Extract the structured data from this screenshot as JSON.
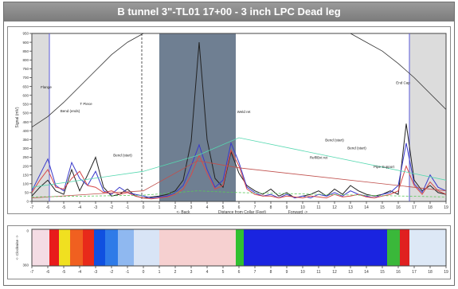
{
  "page": {
    "title": "B tunnel 3\"-TL01 17+00 - 3 inch LPC Dead leg"
  },
  "chart_data": [
    {
      "type": "line",
      "ylabel": "Signal (mV)",
      "xlabel_left": "<- Back",
      "xlabel": "Distance from Collar (Feet)",
      "xlabel_right": "Forward ->",
      "xlim": [
        -7,
        19
      ],
      "ylim": [
        0,
        950
      ],
      "x_ticks": [
        -7,
        -6,
        -5,
        -4,
        -3,
        -2,
        -1,
        0,
        1,
        2,
        3,
        4,
        5,
        6,
        7,
        8,
        9,
        10,
        11,
        12,
        13,
        14,
        15,
        16,
        17,
        18,
        19
      ],
      "y_ticks": [
        0,
        50,
        100,
        150,
        200,
        250,
        300,
        350,
        400,
        450,
        500,
        550,
        600,
        650,
        700,
        750,
        800,
        850,
        900,
        950
      ],
      "shaded_regions": [
        {
          "x0": -7,
          "x1": -5.9,
          "color": "#dcdcdc"
        },
        {
          "x0": 1,
          "x1": 5.8,
          "color": "#6f7f92"
        },
        {
          "x0": 16.7,
          "x1": 19,
          "color": "#dcdcdc"
        }
      ],
      "vlines": [
        {
          "x": -5.9,
          "color": "#5a5ad8",
          "style": "solid"
        },
        {
          "x": -0.1,
          "color": "#555555",
          "style": "dashed"
        },
        {
          "x": 16.7,
          "color": "#5a5ad8",
          "style": "solid"
        }
      ],
      "annotations": [
        {
          "text": "Flange",
          "x": -6.1,
          "y": 640
        },
        {
          "text": "Bend (ends)",
          "x": -4.6,
          "y": 505
        },
        {
          "text": "T Piece",
          "x": -3.6,
          "y": 545
        },
        {
          "text": "Bend (start)",
          "x": -1.3,
          "y": 255
        },
        {
          "text": "Weld ret",
          "x": 6.3,
          "y": 500
        },
        {
          "text": "Bend (start)",
          "x": 12.0,
          "y": 340
        },
        {
          "text": "Bend (start)",
          "x": 13.4,
          "y": 295
        },
        {
          "text": "Refl/Bxt ret",
          "x": 11.0,
          "y": 240
        },
        {
          "text": "Pipe Support",
          "x": 15.1,
          "y": 190
        },
        {
          "text": "End Cap",
          "x": 16.3,
          "y": 665
        }
      ],
      "series": [
        {
          "color": "#222222",
          "x": [
            -7,
            -6.5,
            -6,
            -5.5,
            -5,
            -4.5,
            -4,
            -3.5,
            -3,
            -2.5,
            -2,
            -1.5,
            -1,
            -0.5,
            0,
            0.5,
            1,
            1.5,
            2,
            2.5,
            3,
            3.5,
            4,
            4.5,
            5,
            5.5,
            6,
            6.5,
            7,
            7.5,
            8,
            8.5,
            9,
            9.5,
            10,
            10.5,
            11,
            11.5,
            12,
            12.5,
            13,
            13.5,
            14,
            14.5,
            15,
            15.5,
            16,
            16.5,
            17,
            17.5,
            18,
            18.5,
            19
          ],
          "y": [
            30,
            80,
            120,
            60,
            40,
            180,
            60,
            150,
            250,
            80,
            30,
            40,
            70,
            30,
            20,
            25,
            30,
            40,
            60,
            120,
            340,
            900,
            350,
            130,
            80,
            280,
            160,
            90,
            60,
            40,
            70,
            30,
            50,
            20,
            30,
            40,
            60,
            30,
            70,
            40,
            90,
            60,
            40,
            30,
            40,
            60,
            40,
            440,
            120,
            60,
            90,
            50,
            40
          ]
        },
        {
          "color": "#3a3acb",
          "x": [
            -7,
            -6.5,
            -6,
            -5.5,
            -5,
            -4.5,
            -4,
            -3.5,
            -3,
            -2.5,
            -2,
            -1.5,
            -1,
            -0.5,
            0,
            0.5,
            1,
            1.5,
            2,
            2.5,
            3,
            3.5,
            4,
            4.5,
            5,
            5.5,
            6,
            6.5,
            7,
            7.5,
            8,
            8.5,
            9,
            9.5,
            10,
            10.5,
            11,
            11.5,
            12,
            12.5,
            13,
            13.5,
            14,
            14.5,
            15,
            15.5,
            16,
            16.5,
            17,
            17.5,
            18,
            18.5,
            19
          ],
          "y": [
            60,
            150,
            240,
            90,
            60,
            220,
            130,
            90,
            170,
            60,
            40,
            80,
            50,
            40,
            30,
            20,
            25,
            30,
            50,
            90,
            200,
            320,
            180,
            80,
            120,
            330,
            220,
            80,
            50,
            30,
            40,
            20,
            40,
            20,
            30,
            20,
            40,
            30,
            50,
            30,
            60,
            40,
            30,
            20,
            40,
            50,
            90,
            330,
            100,
            50,
            150,
            80,
            60
          ]
        },
        {
          "color": "#d84a4a",
          "x": [
            -7,
            -6.5,
            -6,
            -5.5,
            -5,
            -4.5,
            -4,
            -3.5,
            -3,
            -2.5,
            -2,
            -1.5,
            -1,
            -0.5,
            0,
            0.5,
            1,
            1.5,
            2,
            2.5,
            3,
            3.5,
            4,
            4.5,
            5,
            5.5,
            6,
            6.5,
            7,
            7.5,
            8,
            8.5,
            9,
            9.5,
            10,
            10.5,
            11,
            11.5,
            12,
            12.5,
            13,
            13.5,
            14,
            14.5,
            15,
            15.5,
            16,
            16.5,
            17,
            17.5,
            18,
            18.5,
            19
          ],
          "y": [
            50,
            120,
            180,
            80,
            70,
            130,
            170,
            90,
            80,
            50,
            60,
            40,
            50,
            30,
            20,
            15,
            20,
            25,
            40,
            70,
            150,
            260,
            160,
            70,
            90,
            290,
            200,
            70,
            40,
            30,
            30,
            20,
            30,
            25,
            20,
            30,
            25,
            20,
            40,
            25,
            30,
            40,
            25,
            20,
            30,
            40,
            60,
            200,
            90,
            40,
            110,
            60,
            40
          ]
        },
        {
          "color": "#c0504d",
          "style": "thin",
          "x": [
            -7,
            0,
            3.4,
            6,
            19
          ],
          "y": [
            20,
            60,
            230,
            190,
            60
          ]
        },
        {
          "color": "#55d8b0",
          "style": "thin",
          "x": [
            -7,
            0,
            3.4,
            6,
            19
          ],
          "y": [
            80,
            170,
            260,
            360,
            120
          ]
        },
        {
          "color": "#5ac85a",
          "style": "dashed",
          "x": [
            -7,
            0,
            3.4,
            6,
            19
          ],
          "y": [
            25,
            35,
            60,
            50,
            25
          ]
        },
        {
          "color": "#333333",
          "style": "thin",
          "x": [
            -7,
            -6,
            -5,
            -4,
            -3,
            -2,
            -1,
            0
          ],
          "y": [
            420,
            480,
            560,
            650,
            740,
            830,
            900,
            950
          ]
        },
        {
          "color": "#333333",
          "style": "thin",
          "x": [
            13,
            14,
            15,
            16,
            17,
            18,
            19
          ],
          "y": [
            950,
            900,
            850,
            780,
            700,
            610,
            520
          ]
        }
      ]
    },
    {
      "type": "heatmap",
      "ylabel": "<- Clockwise ->",
      "x_ticks": [
        -7,
        -6,
        -5,
        -4,
        -3,
        -2,
        -1,
        0,
        1,
        2,
        3,
        4,
        5,
        6,
        7,
        8,
        9,
        10,
        11,
        12,
        13,
        14,
        15,
        16,
        17,
        18,
        19
      ],
      "y_ticks": [
        0,
        360
      ],
      "xlim": [
        -7,
        19
      ],
      "bands": [
        {
          "x0": -7,
          "x1": -5.9,
          "color": "#f4dce4"
        },
        {
          "x0": -5.9,
          "x1": -5.3,
          "color": "#e81b1b"
        },
        {
          "x0": -5.3,
          "x1": -4.6,
          "color": "#f0e020"
        },
        {
          "x0": -4.6,
          "x1": -3.8,
          "color": "#f06020"
        },
        {
          "x0": -3.8,
          "x1": -3.1,
          "color": "#e82a1a"
        },
        {
          "x0": -3.1,
          "x1": -2.4,
          "color": "#1050e0"
        },
        {
          "x0": -2.4,
          "x1": -1.6,
          "color": "#2f7be8"
        },
        {
          "x0": -1.6,
          "x1": -0.6,
          "color": "#8fb8f0"
        },
        {
          "x0": -0.6,
          "x1": 1.0,
          "color": "#d8e4f6"
        },
        {
          "x0": 1.0,
          "x1": 5.8,
          "color": "#f6d0d0"
        },
        {
          "x0": 5.8,
          "x1": 6.3,
          "color": "#30c030"
        },
        {
          "x0": 6.3,
          "x1": 15.3,
          "color": "#1a24e0"
        },
        {
          "x0": 15.3,
          "x1": 16.1,
          "color": "#3ab83a"
        },
        {
          "x0": 16.1,
          "x1": 16.7,
          "color": "#e02020"
        },
        {
          "x0": 16.7,
          "x1": 19,
          "color": "#dde8f6"
        }
      ]
    }
  ]
}
